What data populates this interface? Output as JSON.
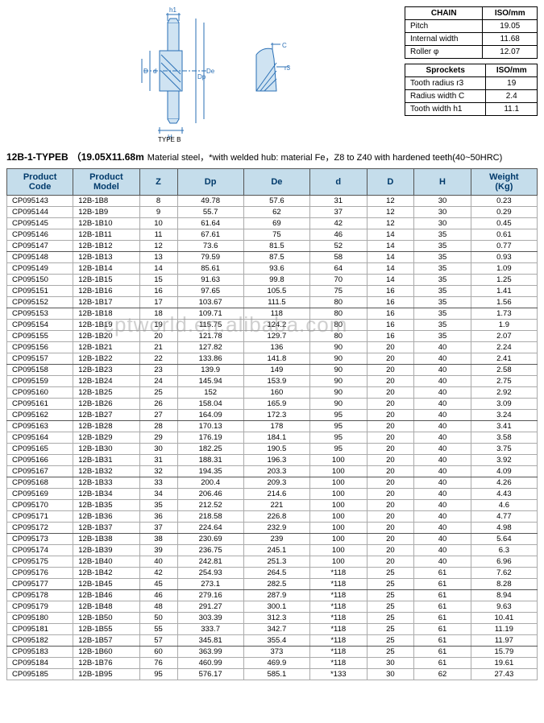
{
  "diagram": {
    "labels": {
      "h1": "h1",
      "De": "De",
      "Dp": "Dp",
      "D": "D",
      "d": "d",
      "H": "H",
      "C": "C",
      "r3": "r3",
      "type": "TYPE B"
    },
    "stroke_color": "#2a6fb5",
    "hatch_color": "#7fb3dd"
  },
  "chain_table": {
    "headers": [
      "CHAIN",
      "ISO/mm"
    ],
    "rows": [
      [
        "Pitch",
        "19.05"
      ],
      [
        "Internal width",
        "11.68"
      ],
      [
        "Roller φ",
        "12.07"
      ]
    ]
  },
  "sprockets_table": {
    "headers": [
      "Sprockets",
      "ISO/mm"
    ],
    "rows": [
      [
        "Tooth radius r3",
        "19"
      ],
      [
        "Radius width C",
        "2.4"
      ],
      [
        "Tooth width h1",
        "11.1"
      ]
    ]
  },
  "title": {
    "main": "12B-1-TYPEB",
    "paren": "（19.05X11.68m",
    "note": "Material steel，*with welded hub: material Fe，Z8 to Z40 with hardened teeth(40~50HRC)"
  },
  "watermark": "cptworld.en.alibaba.com",
  "columns": [
    "Product Code",
    "Product Model",
    "Z",
    "Dp",
    "De",
    "d",
    "D",
    "H",
    "Weight (Kg)"
  ],
  "col_widths": [
    "70",
    "70",
    "40",
    "70",
    "70",
    "60",
    "50",
    "60",
    "70"
  ],
  "header_bg": "#c5ddeb",
  "rows": [
    [
      "CP095143",
      "12B-1B8",
      "8",
      "49.78",
      "57.6",
      "31",
      "12",
      "30",
      "0.23"
    ],
    [
      "CP095144",
      "12B-1B9",
      "9",
      "55.7",
      "62",
      "37",
      "12",
      "30",
      "0.29"
    ],
    [
      "CP095145",
      "12B-1B10",
      "10",
      "61.64",
      "69",
      "42",
      "12",
      "30",
      "0.45"
    ],
    [
      "CP095146",
      "12B-1B11",
      "11",
      "67.61",
      "75",
      "46",
      "14",
      "35",
      "0.61"
    ],
    [
      "CP095147",
      "12B-1B12",
      "12",
      "73.6",
      "81.5",
      "52",
      "14",
      "35",
      "0.77"
    ],
    [
      "CP095148",
      "12B-1B13",
      "13",
      "79.59",
      "87.5",
      "58",
      "14",
      "35",
      "0.93"
    ],
    [
      "CP095149",
      "12B-1B14",
      "14",
      "85.61",
      "93.6",
      "64",
      "14",
      "35",
      "1.09"
    ],
    [
      "CP095150",
      "12B-1B15",
      "15",
      "91.63",
      "99.8",
      "70",
      "14",
      "35",
      "1.25"
    ],
    [
      "CP095151",
      "12B-1B16",
      "16",
      "97.65",
      "105.5",
      "75",
      "16",
      "35",
      "1.41"
    ],
    [
      "CP095152",
      "12B-1B17",
      "17",
      "103.67",
      "111.5",
      "80",
      "16",
      "35",
      "1.56"
    ],
    [
      "CP095153",
      "12B-1B18",
      "18",
      "109.71",
      "118",
      "80",
      "16",
      "35",
      "1.73"
    ],
    [
      "CP095154",
      "12B-1B19",
      "19",
      "115.75",
      "124.2",
      "80",
      "16",
      "35",
      "1.9"
    ],
    [
      "CP095155",
      "12B-1B20",
      "20",
      "121.78",
      "129.7",
      "80",
      "16",
      "35",
      "2.07"
    ],
    [
      "CP095156",
      "12B-1B21",
      "21",
      "127.82",
      "136",
      "90",
      "20",
      "40",
      "2.24"
    ],
    [
      "CP095157",
      "12B-1B22",
      "22",
      "133.86",
      "141.8",
      "90",
      "20",
      "40",
      "2.41"
    ],
    [
      "CP095158",
      "12B-1B23",
      "23",
      "139.9",
      "149",
      "90",
      "20",
      "40",
      "2.58"
    ],
    [
      "CP095159",
      "12B-1B24",
      "24",
      "145.94",
      "153.9",
      "90",
      "20",
      "40",
      "2.75"
    ],
    [
      "CP095160",
      "12B-1B25",
      "25",
      "152",
      "160",
      "90",
      "20",
      "40",
      "2.92"
    ],
    [
      "CP095161",
      "12B-1B26",
      "26",
      "158.04",
      "165.9",
      "90",
      "20",
      "40",
      "3.09"
    ],
    [
      "CP095162",
      "12B-1B27",
      "27",
      "164.09",
      "172.3",
      "95",
      "20",
      "40",
      "3.24"
    ],
    [
      "CP095163",
      "12B-1B28",
      "28",
      "170.13",
      "178",
      "95",
      "20",
      "40",
      "3.41"
    ],
    [
      "CP095164",
      "12B-1B29",
      "29",
      "176.19",
      "184.1",
      "95",
      "20",
      "40",
      "3.58"
    ],
    [
      "CP095165",
      "12B-1B30",
      "30",
      "182.25",
      "190.5",
      "95",
      "20",
      "40",
      "3.75"
    ],
    [
      "CP095166",
      "12B-1B31",
      "31",
      "188.31",
      "196.3",
      "100",
      "20",
      "40",
      "3.92"
    ],
    [
      "CP095167",
      "12B-1B32",
      "32",
      "194.35",
      "203.3",
      "100",
      "20",
      "40",
      "4.09"
    ],
    [
      "CP095168",
      "12B-1B33",
      "33",
      "200.4",
      "209.3",
      "100",
      "20",
      "40",
      "4.26"
    ],
    [
      "CP095169",
      "12B-1B34",
      "34",
      "206.46",
      "214.6",
      "100",
      "20",
      "40",
      "4.43"
    ],
    [
      "CP095170",
      "12B-1B35",
      "35",
      "212.52",
      "221",
      "100",
      "20",
      "40",
      "4.6"
    ],
    [
      "CP095171",
      "12B-1B36",
      "36",
      "218.58",
      "226.8",
      "100",
      "20",
      "40",
      "4.77"
    ],
    [
      "CP095172",
      "12B-1B37",
      "37",
      "224.64",
      "232.9",
      "100",
      "20",
      "40",
      "4.98"
    ],
    [
      "CP095173",
      "12B-1B38",
      "38",
      "230.69",
      "239",
      "100",
      "20",
      "40",
      "5.64"
    ],
    [
      "CP095174",
      "12B-1B39",
      "39",
      "236.75",
      "245.1",
      "100",
      "20",
      "40",
      "6.3"
    ],
    [
      "CP095175",
      "12B-1B40",
      "40",
      "242.81",
      "251.3",
      "100",
      "20",
      "40",
      "6.96"
    ],
    [
      "CP095176",
      "12B-1B42",
      "42",
      "254.93",
      "264.5",
      "*118",
      "25",
      "61",
      "7.62"
    ],
    [
      "CP095177",
      "12B-1B45",
      "45",
      "273.1",
      "282.5",
      "*118",
      "25",
      "61",
      "8.28"
    ],
    [
      "CP095178",
      "12B-1B46",
      "46",
      "279.16",
      "287.9",
      "*118",
      "25",
      "61",
      "8.94"
    ],
    [
      "CP095179",
      "12B-1B48",
      "48",
      "291.27",
      "300.1",
      "*118",
      "25",
      "61",
      "9.63"
    ],
    [
      "CP095180",
      "12B-1B50",
      "50",
      "303.39",
      "312.3",
      "*118",
      "25",
      "61",
      "10.41"
    ],
    [
      "CP095181",
      "12B-1B55",
      "55",
      "333.7",
      "342.7",
      "*118",
      "25",
      "61",
      "11.19"
    ],
    [
      "CP095182",
      "12B-1B57",
      "57",
      "345.81",
      "355.4",
      "*118",
      "25",
      "61",
      "11.97"
    ],
    [
      "CP095183",
      "12B-1B60",
      "60",
      "363.99",
      "373",
      "*118",
      "25",
      "61",
      "15.79"
    ],
    [
      "CP095184",
      "12B-1B76",
      "76",
      "460.99",
      "469.9",
      "*118",
      "30",
      "61",
      "19.61"
    ],
    [
      "CP095185",
      "12B-1B95",
      "95",
      "576.17",
      "585.1",
      "*133",
      "30",
      "62",
      "27.43"
    ]
  ]
}
